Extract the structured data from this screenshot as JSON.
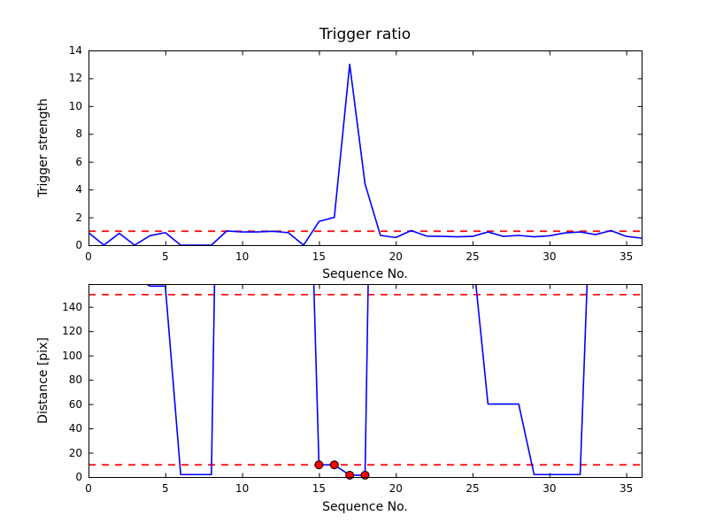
{
  "figure": {
    "background": "#ffffff",
    "text_color": "#000000"
  },
  "chart_data": [
    {
      "type": "line",
      "title": "Trigger ratio",
      "xlabel": "Sequence No.",
      "ylabel": "Trigger strength",
      "xlim": [
        0,
        36
      ],
      "ylim": [
        0,
        14
      ],
      "xticks": [
        0,
        5,
        10,
        15,
        20,
        25,
        30,
        35
      ],
      "yticks": [
        0,
        2,
        4,
        6,
        8,
        10,
        12,
        14
      ],
      "grid": false,
      "x": [
        0,
        1,
        2,
        3,
        4,
        5,
        6,
        7,
        8,
        9,
        10,
        11,
        12,
        13,
        14,
        15,
        16,
        17,
        18,
        19,
        20,
        21,
        22,
        23,
        24,
        25,
        26,
        27,
        28,
        29,
        30,
        31,
        32,
        33,
        34,
        35,
        36
      ],
      "series": [
        {
          "name": "trigger-strength",
          "color": "#0000ff",
          "values": [
            0.9,
            0,
            0.85,
            0,
            0.68,
            0.9,
            0,
            0,
            0,
            1.02,
            0.95,
            0.95,
            1.0,
            0.9,
            0,
            1.7,
            2.0,
            13.0,
            4.4,
            0.7,
            0.55,
            1.05,
            0.65,
            0.63,
            0.6,
            0.63,
            0.95,
            0.63,
            0.7,
            0.6,
            0.67,
            0.88,
            0.95,
            0.76,
            1.05,
            0.63,
            0.5
          ]
        }
      ],
      "thresholds": [
        {
          "name": "trigger-threshold",
          "y": 1,
          "color": "#ff0000",
          "style": "dashed"
        }
      ]
    },
    {
      "type": "line",
      "title": "",
      "xlabel": "Sequence No.",
      "ylabel": "Distance [pix]",
      "xlim": [
        0,
        36
      ],
      "ylim": [
        0,
        158.7
      ],
      "xticks": [
        0,
        5,
        10,
        15,
        20,
        25,
        30,
        35
      ],
      "yticks": [
        0,
        20,
        40,
        60,
        80,
        100,
        120,
        140
      ],
      "grid": false,
      "x": [
        0,
        1,
        2,
        3,
        4,
        5,
        6,
        7,
        8,
        9,
        10,
        11,
        12,
        13,
        14,
        15,
        16,
        17,
        18,
        19,
        20,
        21,
        22,
        23,
        24,
        25,
        26,
        27,
        28,
        29,
        30,
        31,
        32,
        33,
        34,
        35,
        36
      ],
      "series": [
        {
          "name": "distance",
          "color": "#0000ff",
          "values": [
            800,
            800,
            800,
            165,
            157,
            157,
            2,
            2,
            2,
            780,
            800,
            800,
            800,
            800,
            450,
            10,
            10,
            1.5,
            1.5,
            780,
            800,
            800,
            800,
            800,
            800,
            185,
            60,
            60,
            60,
            2,
            2,
            2,
            2,
            350,
            800,
            800,
            800
          ]
        }
      ],
      "markers": {
        "name": "matched-points",
        "face_color": "#ff0000",
        "edge_color": "#000000",
        "points": [
          [
            15,
            10
          ],
          [
            16,
            10
          ],
          [
            17,
            1.5
          ],
          [
            18,
            1.5
          ]
        ]
      },
      "thresholds": [
        {
          "name": "distance-upper-threshold",
          "y": 150,
          "color": "#ff0000",
          "style": "dashed"
        },
        {
          "name": "distance-lower-threshold",
          "y": 10,
          "color": "#ff0000",
          "style": "dashed"
        }
      ]
    }
  ]
}
